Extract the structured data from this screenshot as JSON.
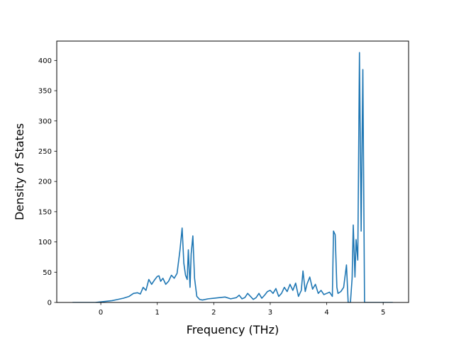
{
  "chart_data": {
    "type": "line",
    "title": "",
    "xlabel": "Frequency (THz)",
    "ylabel": "Density of States",
    "xlim": [
      -0.78,
      5.45
    ],
    "ylim": [
      0,
      432
    ],
    "xticks": [
      0,
      1,
      2,
      3,
      4,
      5
    ],
    "yticks": [
      0,
      50,
      100,
      150,
      200,
      250,
      300,
      350,
      400
    ],
    "grid": false,
    "line_color": "#1f77b4",
    "series": [
      {
        "x": [
          -0.5,
          -0.3,
          -0.1,
          0.0,
          0.1,
          0.2,
          0.3,
          0.4,
          0.5,
          0.58,
          0.65,
          0.7,
          0.75,
          0.8,
          0.85,
          0.9,
          0.95,
          1.0,
          1.03,
          1.06,
          1.1,
          1.15,
          1.2,
          1.25,
          1.3,
          1.35,
          1.4,
          1.44,
          1.47,
          1.5,
          1.53,
          1.55,
          1.58,
          1.6,
          1.63,
          1.66,
          1.7,
          1.75,
          1.8,
          1.9,
          2.0,
          2.1,
          2.2,
          2.3,
          2.4,
          2.45,
          2.5,
          2.55,
          2.6,
          2.65,
          2.7,
          2.75,
          2.8,
          2.85,
          2.9,
          2.95,
          3.0,
          3.05,
          3.1,
          3.15,
          3.2,
          3.25,
          3.3,
          3.35,
          3.4,
          3.45,
          3.5,
          3.55,
          3.58,
          3.62,
          3.65,
          3.7,
          3.75,
          3.8,
          3.85,
          3.9,
          3.95,
          4.0,
          4.05,
          4.1,
          4.12,
          4.15,
          4.18,
          4.2,
          4.25,
          4.3,
          4.35,
          4.38,
          4.42,
          4.45,
          4.47,
          4.5,
          4.52,
          4.55,
          4.58,
          4.61,
          4.64,
          4.67,
          4.7,
          4.75,
          5.0,
          5.17
        ],
        "y": [
          0,
          0,
          0,
          1,
          2,
          3,
          5,
          7,
          10,
          15,
          16,
          14,
          25,
          20,
          38,
          30,
          37,
          43,
          44,
          35,
          40,
          30,
          35,
          45,
          40,
          48,
          85,
          123,
          65,
          45,
          38,
          87,
          25,
          80,
          110,
          40,
          10,
          5,
          4,
          6,
          7,
          8,
          9,
          6,
          8,
          12,
          6,
          8,
          15,
          10,
          5,
          8,
          15,
          7,
          12,
          18,
          20,
          15,
          23,
          10,
          15,
          25,
          18,
          30,
          20,
          32,
          10,
          20,
          52,
          18,
          30,
          42,
          22,
          30,
          15,
          20,
          13,
          15,
          17,
          10,
          118,
          112,
          25,
          15,
          18,
          25,
          62,
          0,
          0,
          40,
          128,
          42,
          104,
          70,
          413,
          118,
          385,
          0,
          0,
          0,
          0,
          0
        ]
      }
    ]
  }
}
